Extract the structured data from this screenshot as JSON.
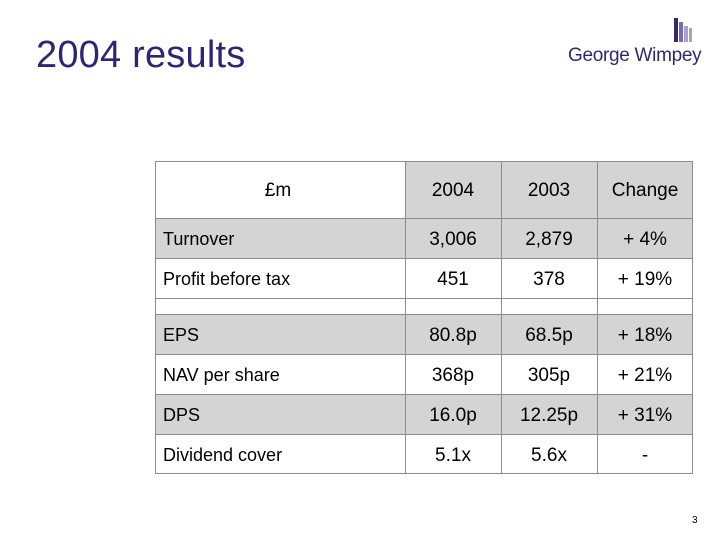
{
  "slide": {
    "title": "2004 results",
    "page_number": "3"
  },
  "logo": {
    "text": "George Wimpey",
    "icon": "brick-bars-icon",
    "colors": {
      "dark": "#2f2a70",
      "purple": "#7b6bb5",
      "light": "#a99fd0",
      "grey": "#a6a6a6"
    }
  },
  "table": {
    "unit_label": "£m",
    "columns": [
      "2004",
      "2003",
      "Change"
    ],
    "rows": [
      {
        "label": "Turnover",
        "values": [
          "3,006",
          "2,879",
          "+ 4%"
        ]
      },
      {
        "label": "Profit before tax",
        "values": [
          "451",
          "378",
          "+ 19%"
        ]
      },
      {
        "label": "EPS",
        "values": [
          "80.8p",
          "68.5p",
          "+ 18%"
        ]
      },
      {
        "label": "NAV per share",
        "values": [
          "368p",
          "305p",
          "+ 21%"
        ]
      },
      {
        "label": "DPS",
        "values": [
          "16.0p",
          "12.25p",
          "+ 31%"
        ]
      },
      {
        "label": "Dividend cover",
        "values": [
          "5.1x",
          "5.6x",
          "-"
        ]
      }
    ],
    "colors": {
      "band": "#d4d4d4",
      "grid": "#8c8c8c"
    }
  }
}
